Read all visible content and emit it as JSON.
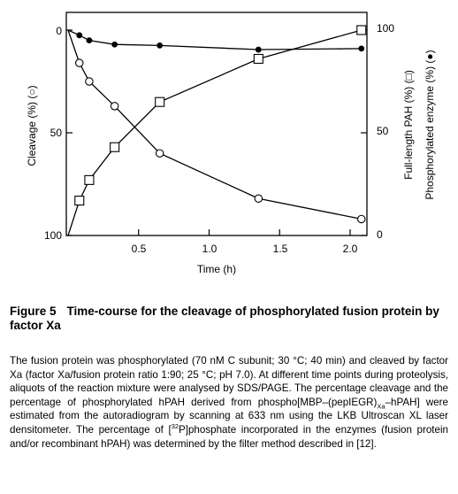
{
  "chart_data": {
    "type": "line",
    "xlabel": "Time (h)",
    "ylabel_left": "Cleavage (%) (○)",
    "ylabel_right_1": "Full-length PAH (%) (□)",
    "ylabel_right_2": "Phosphorylated enzyme (%) (●)",
    "x_ticks": [
      "0.5",
      "1.0",
      "1.5",
      "2.0"
    ],
    "y_left_ticks": [
      "0",
      "50",
      "100"
    ],
    "y_right_ticks": [
      "100",
      "50",
      "0"
    ],
    "xlim": [
      0,
      2.15
    ],
    "ylim_left_inverted": [
      0,
      100
    ],
    "ylim_right": [
      0,
      100
    ],
    "series": [
      {
        "axis": "left",
        "marker": "open-circle",
        "x": [
          0,
          0.08,
          0.15,
          0.33,
          0.65,
          1.35,
          2.08
        ],
        "y": [
          0,
          16,
          25,
          37,
          60,
          82,
          92
        ]
      },
      {
        "axis": "right",
        "marker": "open-square",
        "x": [
          0,
          0.08,
          0.15,
          0.33,
          0.65,
          1.35,
          2.08
        ],
        "y": [
          0,
          17,
          27,
          43,
          65,
          86,
          100
        ]
      },
      {
        "axis": "right",
        "marker": "filled-circle",
        "x": [
          0,
          0.08,
          0.15,
          0.33,
          0.65,
          1.35,
          2.08
        ],
        "y": [
          100,
          97.5,
          95,
          93,
          92.5,
          90.5,
          91
        ]
      }
    ]
  },
  "caption": {
    "label": "Figure 5",
    "title": "Time-course for the cleavage of phosphorylated fusion protein by factor Xa",
    "body_1": "The fusion protein was phosphorylated (70 nM C subunit; 30 °C; 40 min) and cleaved by factor Xa (factor Xa/fusion protein ratio 1:90; 25 °C; pH 7.0). At different time points during proteolysis, aliquots of the reaction mixture were analysed by SDS/PAGE. The percentage cleavage and the percentage of phosphorylated hPAH derived from phospho[MBP–(pepIEGR)",
    "body_sub": "Xa",
    "body_2": "–hPAH] were estimated from the autoradiogram by scanning at 633 nm using the LKB Ultroscan XL laser densitometer. The percentage of [",
    "body_sup": "32",
    "body_3": "P]phosphate incorporated in the enzymes (fusion protein and/or recombinant hPAH) was determined by the filter method described in [12]."
  }
}
